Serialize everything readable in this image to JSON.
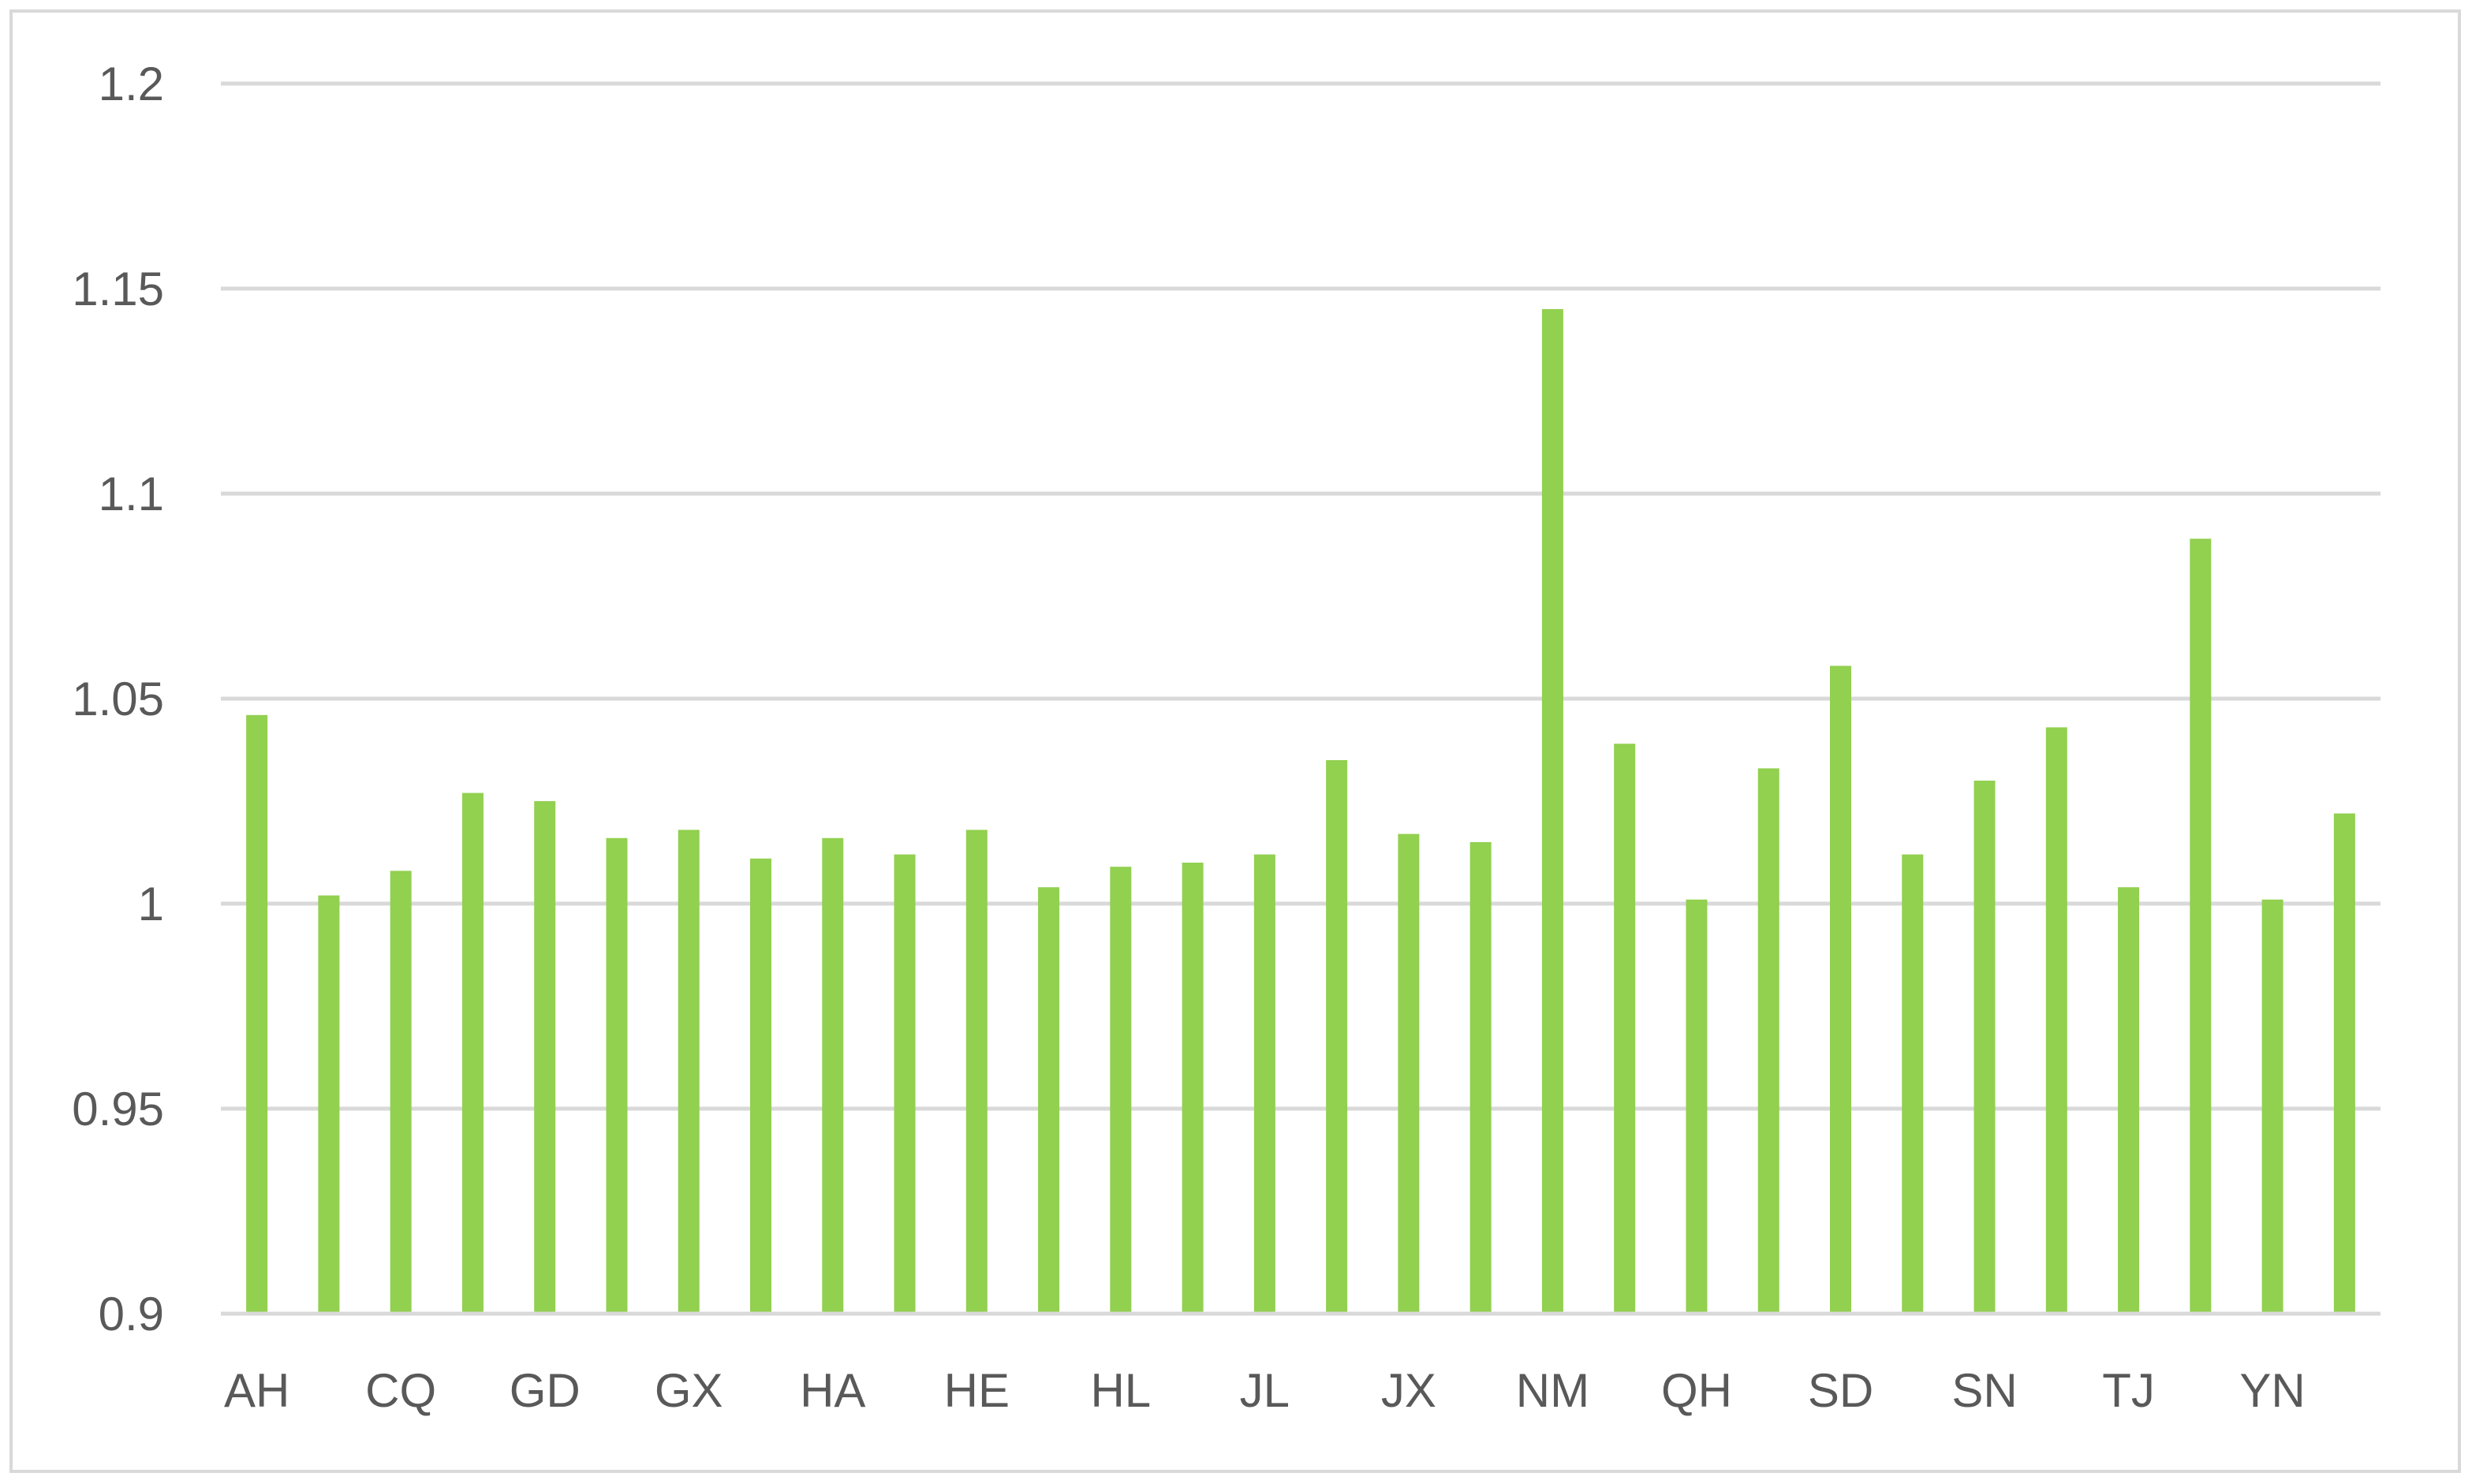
{
  "chart_data": {
    "type": "bar",
    "title": "",
    "xlabel": "",
    "ylabel": "",
    "ylim": [
      0.9,
      1.2
    ],
    "yticks": [
      "0.9",
      "0.95",
      "1",
      "1.05",
      "1.1",
      "1.15",
      "1.2"
    ],
    "grid": true,
    "legend": "none",
    "bar_color": "#92d050",
    "categories": [
      "AH",
      "",
      "CQ",
      "",
      "GD",
      "",
      "GX",
      "",
      "HA",
      "",
      "HE",
      "",
      "HL",
      "",
      "JL",
      "",
      "JX",
      "",
      "NM",
      "",
      "QH",
      "",
      "SD",
      "",
      "SN",
      "",
      "TJ",
      "",
      "YN",
      ""
    ],
    "values": [
      1.046,
      1.002,
      1.008,
      1.027,
      1.025,
      1.016,
      1.018,
      1.011,
      1.016,
      1.012,
      1.018,
      1.004,
      1.009,
      1.01,
      1.012,
      1.035,
      1.017,
      1.015,
      1.145,
      1.039,
      1.001,
      1.033,
      1.058,
      1.012,
      1.03,
      1.043,
      1.004,
      1.089,
      1.001,
      1.022
    ]
  }
}
